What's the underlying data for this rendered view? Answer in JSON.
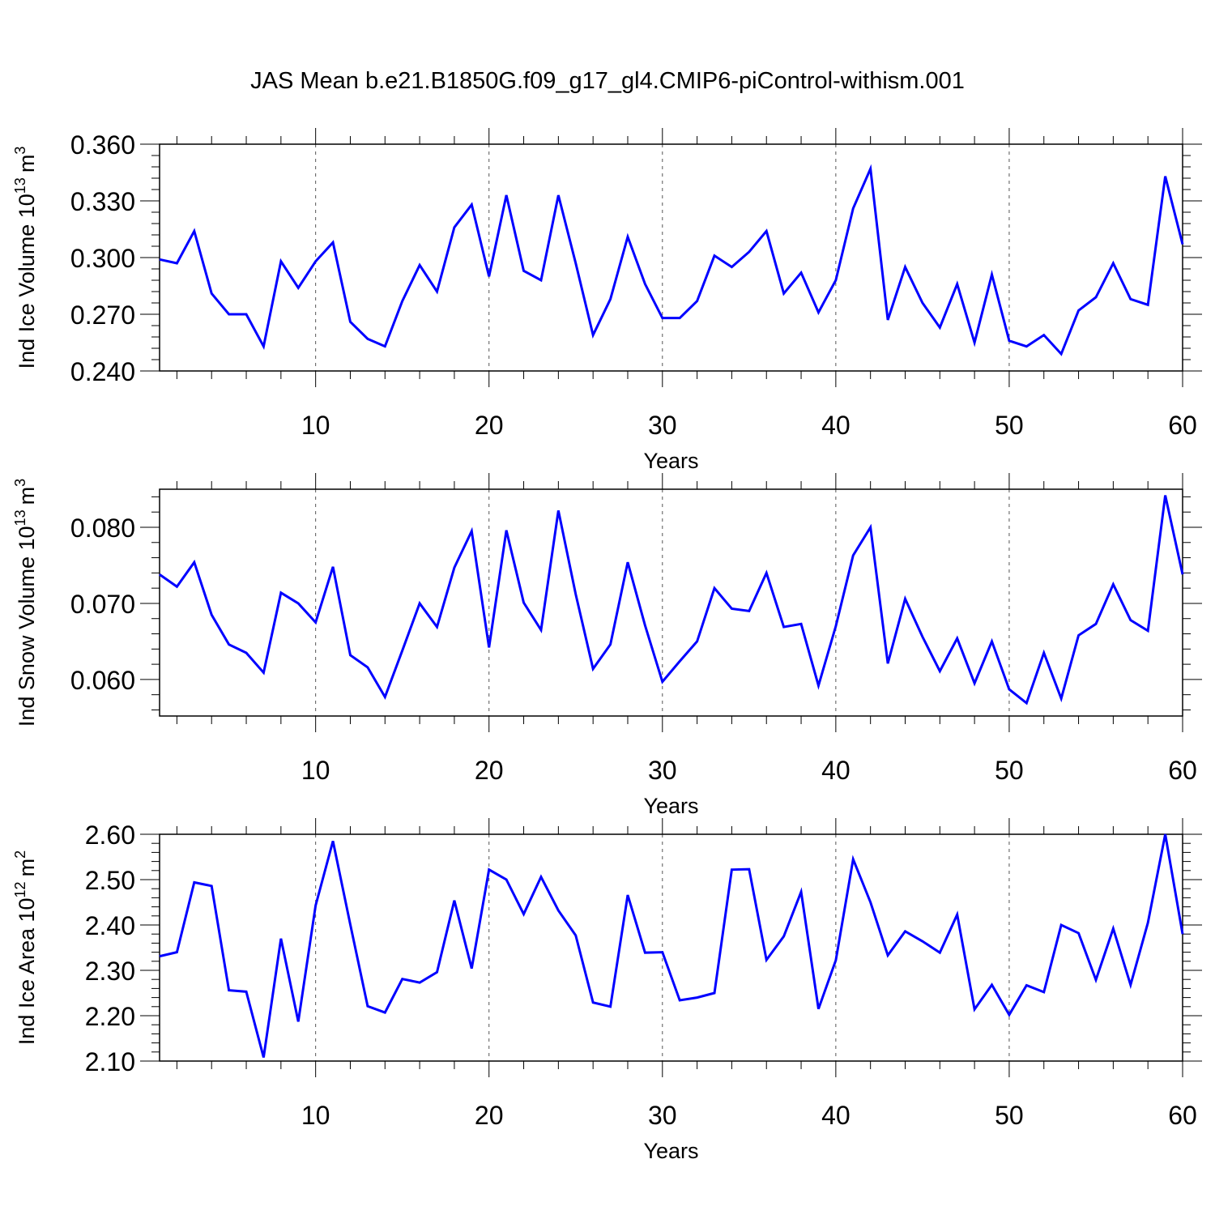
{
  "title": "JAS Mean b.e21.B1850G.f09_g17_gl4.CMIP6-piControl-withism.001",
  "line_color": "#0000ff",
  "chart_data": [
    {
      "type": "line",
      "ylabel_main": "Ind Ice Volume 10",
      "ylabel_exp": "13",
      "ylabel_unit": "m",
      "ylabel_unit_exp": "3",
      "xlabel": "Years",
      "xlim": [
        1,
        60
      ],
      "ylim": [
        0.24,
        0.36
      ],
      "yticks": [
        0.24,
        0.27,
        0.3,
        0.33,
        0.36
      ],
      "ytick_labels": [
        "0.240",
        "0.270",
        "0.300",
        "0.330",
        "0.360"
      ],
      "xticks": [
        10,
        20,
        30,
        40,
        50,
        60
      ],
      "xtick_labels": [
        "10",
        "20",
        "30",
        "40",
        "50",
        "60"
      ],
      "series": [
        {
          "values": [
            0.299,
            0.297,
            0.314,
            0.281,
            0.27,
            0.27,
            0.253,
            0.298,
            0.284,
            0.298,
            0.308,
            0.266,
            0.257,
            0.253,
            0.277,
            0.296,
            0.282,
            0.316,
            0.328,
            0.29,
            0.333,
            0.293,
            0.288,
            0.333,
            0.297,
            0.259,
            0.278,
            0.311,
            0.286,
            0.268,
            0.268,
            0.277,
            0.301,
            0.295,
            0.303,
            0.314,
            0.281,
            0.292,
            0.271,
            0.288,
            0.326,
            0.347,
            0.267,
            0.295,
            0.276,
            0.263,
            0.286,
            0.255,
            0.291,
            0.256,
            0.253,
            0.259,
            0.249,
            0.272,
            0.279,
            0.297,
            0.278,
            0.275,
            0.343,
            0.307
          ]
        }
      ]
    },
    {
      "type": "line",
      "ylabel_main": "Ind Snow Volume 10",
      "ylabel_exp": "13",
      "ylabel_unit": "m",
      "ylabel_unit_exp": "3",
      "xlabel": "Years",
      "xlim": [
        1,
        60
      ],
      "ylim": [
        0.0552,
        0.085
      ],
      "yticks": [
        0.06,
        0.07,
        0.08
      ],
      "ytick_labels": [
        "0.060",
        "0.070",
        "0.080"
      ],
      "xticks": [
        10,
        20,
        30,
        40,
        50,
        60
      ],
      "xtick_labels": [
        "10",
        "20",
        "30",
        "40",
        "50",
        "60"
      ],
      "series": [
        {
          "values": [
            0.0738,
            0.0722,
            0.0754,
            0.0685,
            0.0646,
            0.0635,
            0.0609,
            0.0714,
            0.07,
            0.0675,
            0.0748,
            0.0632,
            0.0616,
            0.0577,
            0.0638,
            0.07,
            0.0669,
            0.0747,
            0.0795,
            0.0642,
            0.0796,
            0.0701,
            0.0665,
            0.0822,
            0.0712,
            0.0614,
            0.0646,
            0.0754,
            0.0671,
            0.0597,
            0.0624,
            0.065,
            0.072,
            0.0693,
            0.069,
            0.074,
            0.0669,
            0.0673,
            0.0592,
            0.067,
            0.0763,
            0.08,
            0.0621,
            0.0706,
            0.0656,
            0.0611,
            0.0654,
            0.0595,
            0.065,
            0.0587,
            0.0569,
            0.0635,
            0.0575,
            0.0658,
            0.0673,
            0.0725,
            0.0678,
            0.0664,
            0.0842,
            0.0738
          ]
        }
      ]
    },
    {
      "type": "line",
      "ylabel_main": "Ind Ice Area 10",
      "ylabel_exp": "12",
      "ylabel_unit": "m",
      "ylabel_unit_exp": "2",
      "xlabel": "Years",
      "xlim": [
        1,
        60
      ],
      "ylim": [
        2.1,
        2.6
      ],
      "yticks": [
        2.1,
        2.2,
        2.3,
        2.4,
        2.5,
        2.6
      ],
      "ytick_labels": [
        "2.10",
        "2.20",
        "2.30",
        "2.40",
        "2.50",
        "2.60"
      ],
      "xticks": [
        10,
        20,
        30,
        40,
        50,
        60
      ],
      "xtick_labels": [
        "10",
        "20",
        "30",
        "40",
        "50",
        "60"
      ],
      "series": [
        {
          "values": [
            2.331,
            2.34,
            2.494,
            2.486,
            2.256,
            2.253,
            2.108,
            2.37,
            2.187,
            2.443,
            2.585,
            2.401,
            2.221,
            2.207,
            2.281,
            2.273,
            2.296,
            2.454,
            2.304,
            2.522,
            2.5,
            2.424,
            2.506,
            2.432,
            2.377,
            2.229,
            2.22,
            2.466,
            2.339,
            2.34,
            2.234,
            2.24,
            2.25,
            2.522,
            2.523,
            2.323,
            2.375,
            2.473,
            2.215,
            2.322,
            2.545,
            2.45,
            2.333,
            2.386,
            2.364,
            2.339,
            2.423,
            2.214,
            2.268,
            2.202,
            2.267,
            2.252,
            2.4,
            2.382,
            2.279,
            2.392,
            2.268,
            2.405,
            2.6,
            2.38
          ]
        }
      ]
    }
  ]
}
